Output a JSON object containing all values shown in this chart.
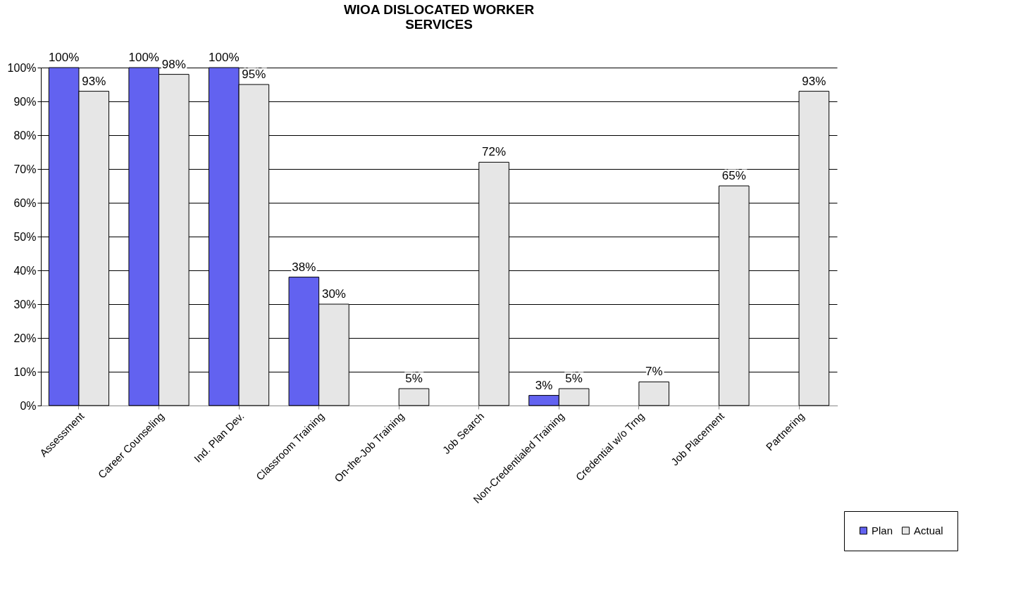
{
  "chart_data": {
    "type": "bar",
    "title": "WIOA DISLOCATED WORKER SERVICES",
    "categories": [
      "Assessment",
      "Career Counseling",
      "Ind. Plan Dev.",
      "Classroom Training",
      "On-the-Job Training",
      "Job Search",
      "Non-Credentialed Training",
      "Credential w/o Trng",
      "Job Placement",
      "Partnering"
    ],
    "series": [
      {
        "name": "Plan",
        "color": "#6262f0",
        "values": [
          100,
          100,
          100,
          38,
          null,
          null,
          3,
          null,
          null,
          null
        ],
        "value_labels": [
          "100%",
          "100%",
          "100%",
          "38%",
          null,
          null,
          "3%",
          null,
          null,
          null
        ]
      },
      {
        "name": "Actual",
        "color": "#e6e6e6",
        "values": [
          93,
          98,
          95,
          30,
          5,
          72,
          5,
          7,
          65,
          93
        ],
        "value_labels": [
          "93%",
          "98%",
          "95%",
          "30%",
          "5%",
          "72%",
          "5%",
          "7%",
          "65%",
          "93%"
        ]
      }
    ],
    "ylim": [
      0,
      100
    ],
    "yticks": [
      {
        "value": 0,
        "label": "0%"
      },
      {
        "value": 10,
        "label": "10%"
      },
      {
        "value": 20,
        "label": "20%"
      },
      {
        "value": 30,
        "label": "30%"
      },
      {
        "value": 40,
        "label": "40%"
      },
      {
        "value": 50,
        "label": "50%"
      },
      {
        "value": 60,
        "label": "60%"
      },
      {
        "value": 70,
        "label": "70%"
      },
      {
        "value": 80,
        "label": "80%"
      },
      {
        "value": 90,
        "label": "90%"
      },
      {
        "value": 100,
        "label": "100%"
      }
    ],
    "grid": "y",
    "legend": "bottom right"
  }
}
